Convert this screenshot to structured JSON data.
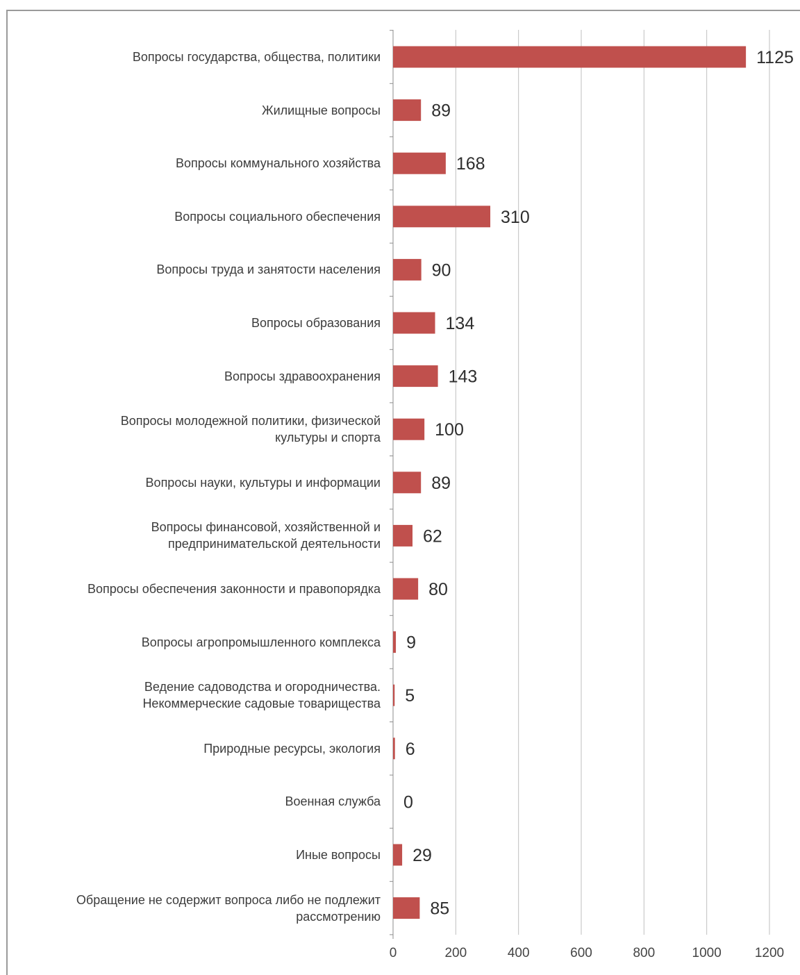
{
  "chart_data": {
    "type": "bar",
    "orientation": "horizontal",
    "categories": [
      "Вопросы государства, общества, политики",
      "Жилищные вопросы",
      "Вопросы коммунального хозяйства",
      "Вопросы социального обеспечения",
      "Вопросы труда и занятости населения",
      "Вопросы образования",
      "Вопросы здравоохранения",
      "Вопросы молодежной политики, физической\nкультуры и спорта",
      "Вопросы науки, культуры и информации",
      "Вопросы финансовой, хозяйственной и\nпредпринимательской деятельности",
      "Вопросы обеспечения законности и правопорядка",
      "Вопросы агропромышленного комплекса",
      "Ведение садоводства и огородничества.\nНекоммерческие садовые товарищества",
      "Природные ресурсы, экология",
      "Военная служба",
      "Иные вопросы",
      "Обращение не содержит вопроса либо не подлежит\nрассмотрению"
    ],
    "values": [
      1125,
      89,
      168,
      310,
      90,
      134,
      143,
      100,
      89,
      62,
      80,
      9,
      5,
      6,
      0,
      29,
      85
    ],
    "data_labels": [
      "1125",
      "89",
      "168",
      "310",
      "90",
      "134",
      "143",
      "100",
      "89",
      "62",
      "80",
      "9",
      "5",
      "6",
      "0",
      "29",
      "85"
    ],
    "xlim": [
      0,
      1200
    ],
    "xticks": [
      "0",
      "200",
      "400",
      "600",
      "800",
      "1000",
      "1200"
    ],
    "grid": "vertical",
    "bar_color": "#c0504d",
    "grid_color": "#bfbfbf",
    "legend": "none"
  }
}
